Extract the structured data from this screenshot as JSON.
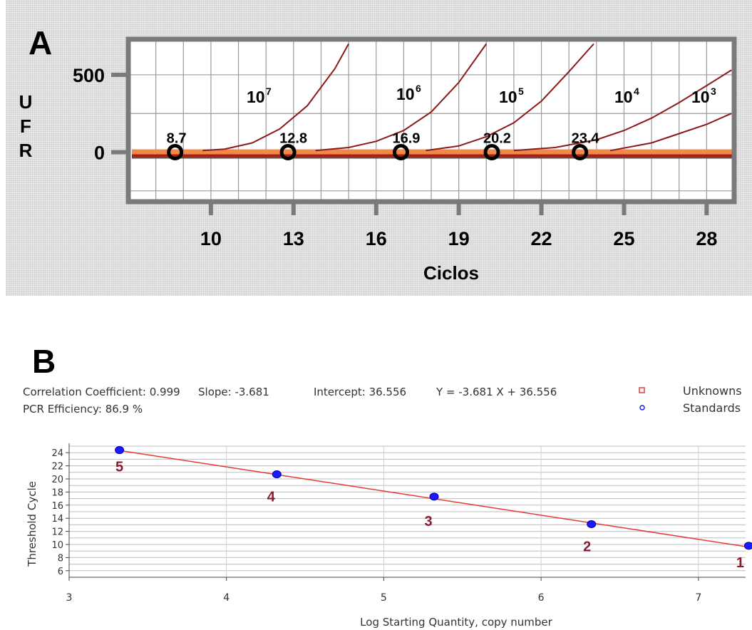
{
  "chart_data": [
    {
      "type": "line",
      "panel_label": "A",
      "xlabel": "Ciclos",
      "ylabel": "UFR",
      "x_ticks": [
        10,
        13,
        16,
        19,
        22,
        25,
        28
      ],
      "y_ticks": [
        0,
        500
      ],
      "xlim": [
        7,
        29
      ],
      "ylim": [
        -320,
        730
      ],
      "grid": true,
      "series": [
        {
          "name": "10^7",
          "label_base": "10",
          "label_exp": "7",
          "ct": 8.7,
          "ct_label": "8.7",
          "x": [
            9.7,
            10.5,
            11.5,
            12.5,
            13.5,
            14.5,
            15.0
          ],
          "y": [
            10,
            20,
            60,
            150,
            300,
            540,
            700
          ]
        },
        {
          "name": "10^6",
          "label_base": "10",
          "label_exp": "6",
          "ct": 12.8,
          "ct_label": "12.8",
          "x": [
            13.8,
            15.0,
            16.0,
            17.0,
            18.0,
            19.0,
            20.0
          ],
          "y": [
            10,
            30,
            70,
            140,
            260,
            450,
            700
          ]
        },
        {
          "name": "10^5",
          "label_base": "10",
          "label_exp": "5",
          "ct": 16.9,
          "ct_label": "16.9",
          "x": [
            17.8,
            19.0,
            20.0,
            21.0,
            22.0,
            23.0,
            23.9
          ],
          "y": [
            10,
            40,
            100,
            190,
            330,
            520,
            700
          ]
        },
        {
          "name": "10^4",
          "label_base": "10",
          "label_exp": "4",
          "ct": 20.2,
          "ct_label": "20.2",
          "x": [
            21.0,
            22.5,
            24.0,
            25.0,
            26.0,
            27.0,
            28.0,
            28.9
          ],
          "y": [
            10,
            30,
            80,
            140,
            220,
            320,
            430,
            530
          ]
        },
        {
          "name": "10^3",
          "label_base": "10",
          "label_exp": "3",
          "ct": 23.4,
          "ct_label": "23.4",
          "x": [
            24.5,
            26.0,
            27.0,
            28.0,
            28.9
          ],
          "y": [
            10,
            60,
            120,
            180,
            250
          ]
        }
      ]
    },
    {
      "type": "scatter",
      "panel_label": "B",
      "stats": {
        "correlation": "Correlation Coefficient: 0.999",
        "slope": "Slope: -3.681",
        "intercept": "Intercept: 36.556",
        "equation": "Y = -3.681 X + 36.556",
        "efficiency": "PCR Efficiency: 86.9 %"
      },
      "legend": [
        {
          "name": "Unknowns",
          "marker": "square",
          "color": "#e53935"
        },
        {
          "name": "Standards",
          "marker": "circle",
          "color": "#1a1aff"
        }
      ],
      "legend_position": "top-right",
      "xlabel": "Log Starting Quantity, copy number",
      "ylabel": "Threshold Cycle",
      "xlim": [
        3,
        7.3
      ],
      "ylim": [
        5,
        25
      ],
      "x_ticks": [
        3,
        4,
        5,
        6,
        7
      ],
      "y_ticks": [
        6,
        8,
        10,
        12,
        14,
        16,
        18,
        20,
        22,
        24
      ],
      "grid": true,
      "fit_line": {
        "slope": -3.681,
        "intercept": 36.556,
        "color": "#e53935"
      },
      "points": [
        {
          "x": 3.32,
          "y": 24.4,
          "label": "5"
        },
        {
          "x": 4.32,
          "y": 20.7,
          "label": "4"
        },
        {
          "x": 5.32,
          "y": 17.3,
          "label": "3"
        },
        {
          "x": 6.32,
          "y": 13.1,
          "label": "2"
        },
        {
          "x": 7.32,
          "y": 9.8,
          "label": "1"
        }
      ]
    }
  ]
}
